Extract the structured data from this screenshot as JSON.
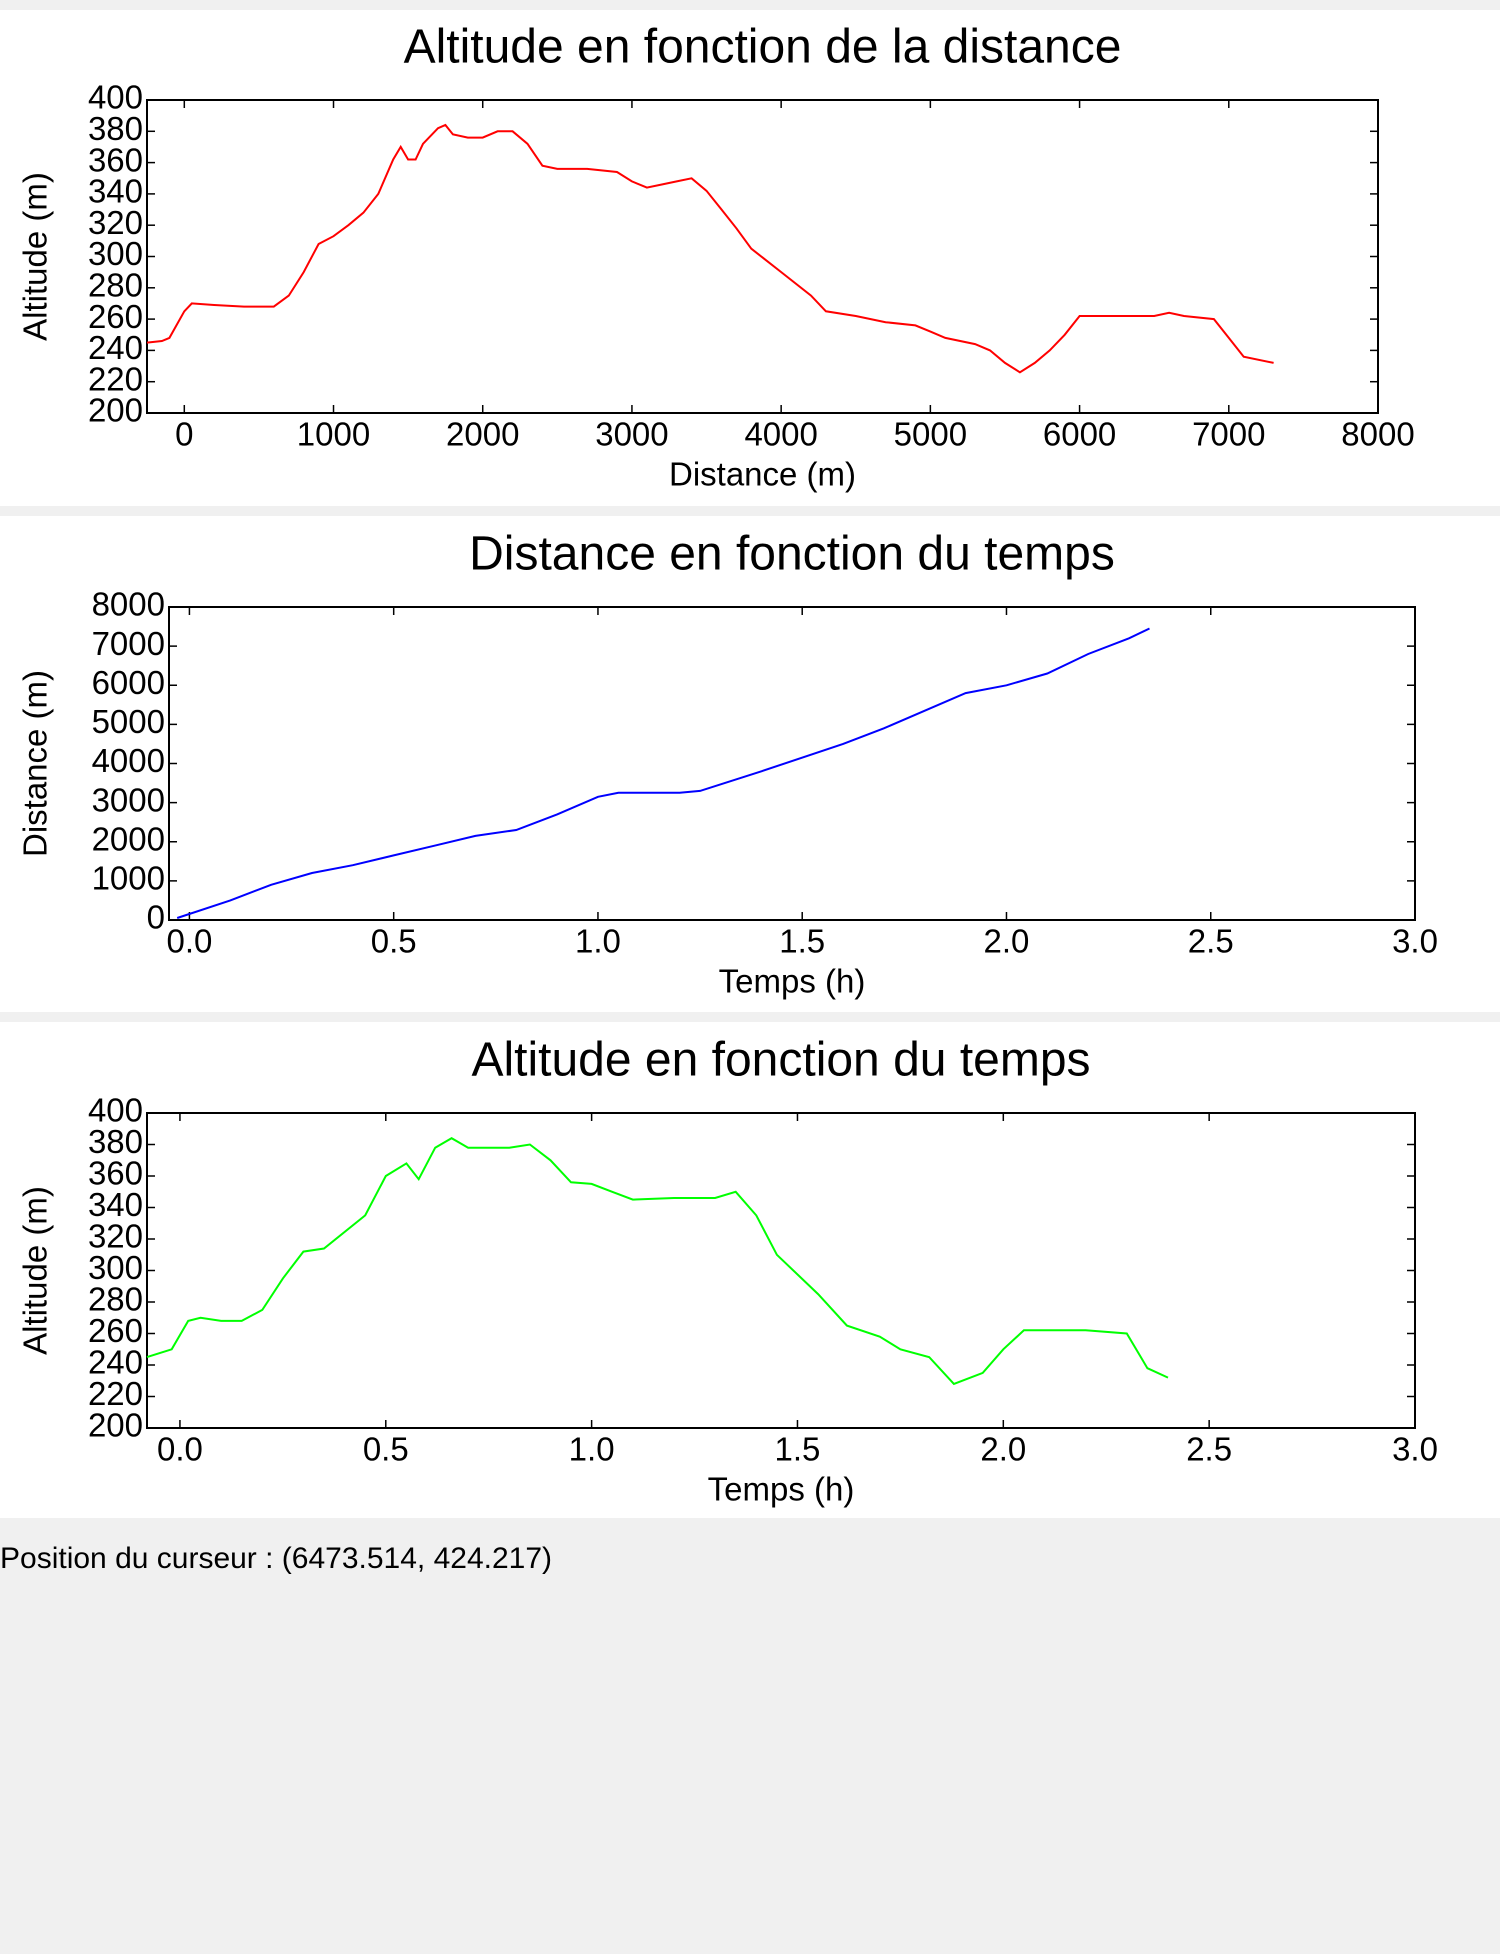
{
  "chart_data": [
    {
      "type": "line",
      "title": "Altitude en fonction de la distance",
      "xlabel": "Distance (m)",
      "ylabel": "Altitude (m)",
      "color": "#ff0000",
      "x": [
        -250,
        -150,
        -100,
        0,
        50,
        200,
        400,
        600,
        700,
        800,
        900,
        1000,
        1100,
        1200,
        1300,
        1400,
        1450,
        1500,
        1550,
        1600,
        1700,
        1750,
        1800,
        1900,
        2000,
        2100,
        2200,
        2300,
        2400,
        2500,
        2700,
        2900,
        3000,
        3100,
        3200,
        3300,
        3400,
        3500,
        3600,
        3700,
        3800,
        4000,
        4200,
        4300,
        4500,
        4700,
        4900,
        5000,
        5100,
        5300,
        5400,
        5500,
        5600,
        5700,
        5800,
        5900,
        6000,
        6200,
        6500,
        6600,
        6700,
        6900,
        7000,
        7100,
        7300
      ],
      "values": [
        245,
        246,
        248,
        265,
        270,
        269,
        268,
        268,
        275,
        290,
        308,
        313,
        320,
        328,
        340,
        362,
        370,
        362,
        362,
        372,
        382,
        384,
        378,
        376,
        376,
        380,
        380,
        372,
        358,
        356,
        356,
        354,
        348,
        344,
        346,
        348,
        350,
        342,
        330,
        318,
        305,
        290,
        275,
        265,
        262,
        258,
        256,
        252,
        248,
        244,
        240,
        232,
        226,
        232,
        240,
        250,
        262,
        262,
        262,
        264,
        262,
        260,
        248,
        236,
        232
      ],
      "xlim": [
        -250,
        8000
      ],
      "xticks": [
        0,
        1000,
        2000,
        3000,
        4000,
        5000,
        6000,
        7000,
        8000
      ],
      "ylim": [
        200,
        400
      ],
      "yticks": [
        200,
        220,
        240,
        260,
        280,
        300,
        320,
        340,
        360,
        380,
        400
      ]
    },
    {
      "type": "line",
      "title": "Distance en fonction du temps",
      "xlabel": "Temps (h)",
      "ylabel": "Distance (m)",
      "color": "#0000ff",
      "x": [
        -0.03,
        0.1,
        0.2,
        0.3,
        0.4,
        0.5,
        0.6,
        0.7,
        0.8,
        0.9,
        1.0,
        1.05,
        1.2,
        1.25,
        1.4,
        1.6,
        1.7,
        1.9,
        2.0,
        2.1,
        2.2,
        2.3,
        2.35
      ],
      "values": [
        50,
        500,
        900,
        1200,
        1400,
        1650,
        1900,
        2150,
        2300,
        2700,
        3150,
        3250,
        3250,
        3300,
        3800,
        4500,
        4900,
        5800,
        6000,
        6300,
        6800,
        7200,
        7450
      ],
      "xlim": [
        -0.05,
        3.0
      ],
      "xticks": [
        {
          "value": 0,
          "label": "0.0"
        },
        0.5,
        {
          "value": 1,
          "label": "1.0"
        },
        1.5,
        {
          "value": 2,
          "label": "2.0"
        },
        2.5,
        {
          "value": 3,
          "label": "3.0"
        }
      ],
      "ylim": [
        0,
        8000
      ],
      "yticks": [
        0,
        1000,
        2000,
        3000,
        4000,
        5000,
        6000,
        7000,
        8000
      ]
    },
    {
      "type": "line",
      "title": "Altitude en fonction du temps",
      "xlabel": "Temps (h)",
      "ylabel": "Altitude (m)",
      "color": "#00ff00",
      "x": [
        -0.08,
        -0.02,
        0.02,
        0.05,
        0.1,
        0.15,
        0.2,
        0.25,
        0.3,
        0.35,
        0.45,
        0.5,
        0.55,
        0.58,
        0.62,
        0.66,
        0.7,
        0.8,
        0.85,
        0.9,
        0.95,
        1.0,
        1.05,
        1.1,
        1.2,
        1.3,
        1.35,
        1.4,
        1.45,
        1.55,
        1.62,
        1.7,
        1.75,
        1.82,
        1.88,
        1.95,
        2.0,
        2.05,
        2.2,
        2.3,
        2.35,
        2.4
      ],
      "values": [
        245,
        250,
        268,
        270,
        268,
        268,
        275,
        295,
        312,
        314,
        335,
        360,
        368,
        358,
        378,
        384,
        378,
        378,
        380,
        370,
        356,
        355,
        350,
        345,
        346,
        346,
        350,
        335,
        310,
        285,
        265,
        258,
        250,
        245,
        228,
        235,
        250,
        262,
        262,
        260,
        238,
        232
      ],
      "xlim": [
        -0.08,
        3.0
      ],
      "xticks": [
        {
          "value": 0,
          "label": "0.0"
        },
        0.5,
        {
          "value": 1,
          "label": "1.0"
        },
        1.5,
        {
          "value": 2,
          "label": "2.0"
        },
        2.5,
        {
          "value": 3,
          "label": "3.0"
        }
      ],
      "ylim": [
        200,
        400
      ],
      "yticks": [
        200,
        220,
        240,
        260,
        280,
        300,
        320,
        340,
        360,
        380,
        400
      ]
    }
  ],
  "status_bar": "Position du curseur : (6473.514, 424.217)"
}
